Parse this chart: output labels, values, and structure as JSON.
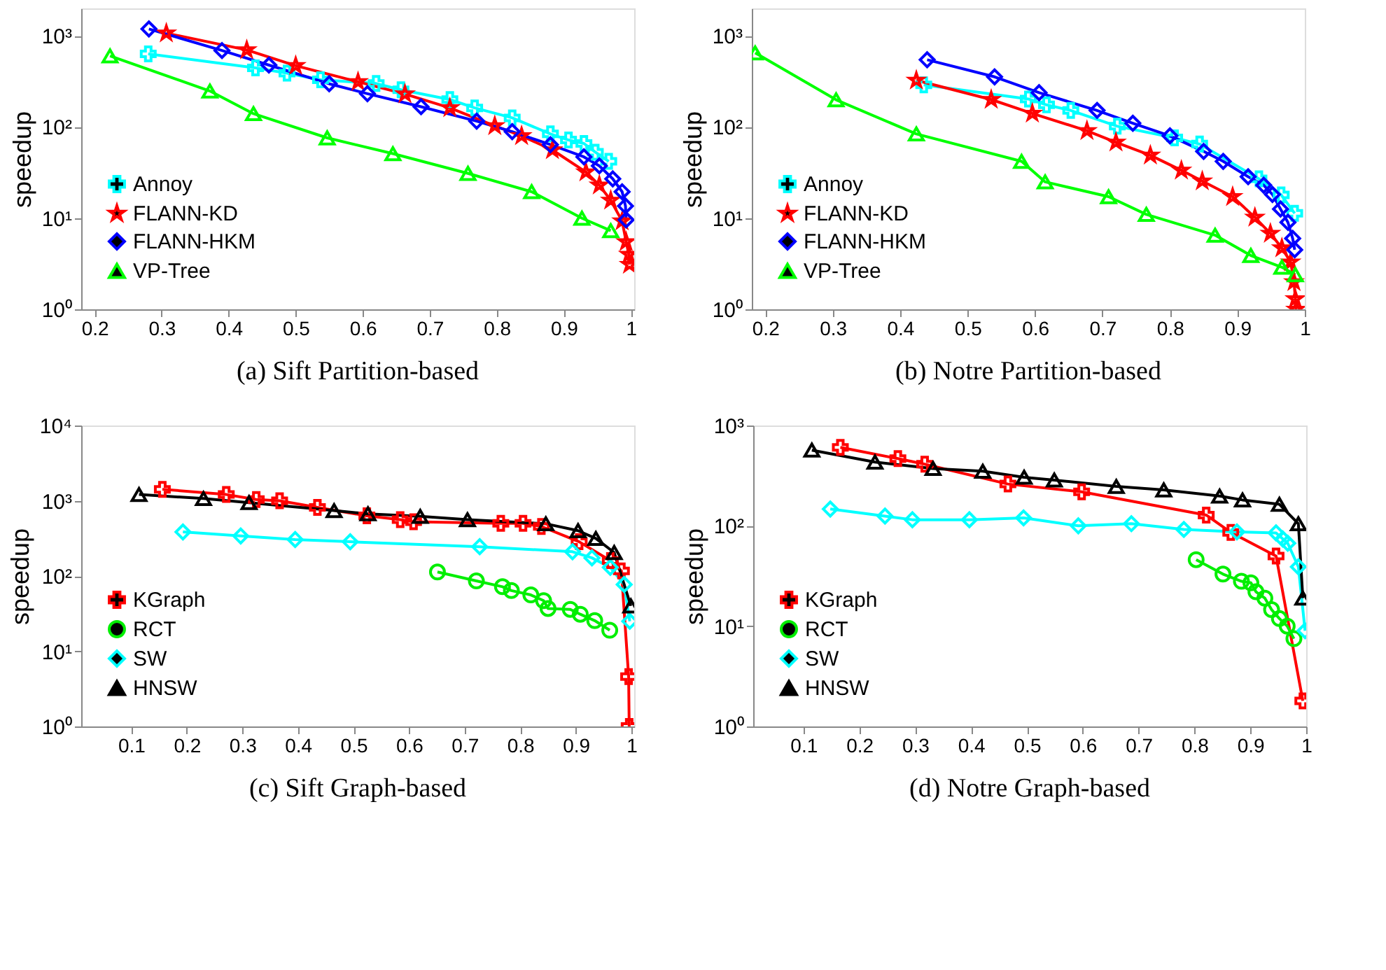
{
  "chart_data": [
    {
      "type": "line",
      "title": "(a) Sift Partition-based",
      "ylabel": "speedup",
      "log": "y",
      "grid": false,
      "legend": "bottom left",
      "xlim": [
        0.18,
        1.005
      ],
      "ylim": [
        1,
        2000
      ],
      "xticks": [
        0.2,
        0.3,
        0.4,
        0.5,
        0.6,
        0.7,
        0.8,
        0.9,
        1
      ],
      "yticks": [
        {
          "value": 1,
          "label": "10⁰"
        },
        {
          "value": 10,
          "label": "10¹"
        },
        {
          "value": 100,
          "label": "10²"
        },
        {
          "value": 1000,
          "label": "10³"
        }
      ],
      "series": [
        {
          "name": "Annoy",
          "color": "#00ffff",
          "marker": "cross",
          "x": [
            0.28,
            0.44,
            0.487,
            0.537,
            0.62,
            0.657,
            0.73,
            0.767,
            0.823,
            0.88,
            0.907,
            0.93,
            0.947,
            0.967
          ],
          "values": [
            635,
            445,
            390,
            330,
            300,
            256,
            200,
            162,
            126,
            84,
            72,
            66,
            53,
            42
          ]
        },
        {
          "name": "FLANN-KD",
          "color": "#ff0000",
          "marker": "star",
          "x": [
            0.307,
            0.427,
            0.5,
            0.593,
            0.663,
            0.73,
            0.797,
            0.837,
            0.883,
            0.933,
            0.953,
            0.97,
            0.987,
            0.993,
            0.997,
            0.998
          ],
          "values": [
            1070,
            700,
            470,
            313,
            230,
            162,
            103,
            80,
            56,
            32,
            23,
            15.7,
            9.3,
            5.5,
            4,
            3.1
          ]
        },
        {
          "name": "FLANN-HKM",
          "color": "#0000ff",
          "marker": "diamond",
          "x": [
            0.281,
            0.39,
            0.46,
            0.55,
            0.607,
            0.687,
            0.77,
            0.823,
            0.88,
            0.93,
            0.953,
            0.973,
            0.987,
            0.992,
            0.993
          ],
          "values": [
            1190,
            690,
            478,
            298,
            232,
            167,
            116,
            89,
            64,
            47,
            37.5,
            27,
            19.5,
            13.6,
            9.6
          ]
        },
        {
          "name": "VP-Tree",
          "color": "#00ff00",
          "marker": "triangle",
          "x": [
            0.223,
            0.372,
            0.437,
            0.547,
            0.645,
            0.757,
            0.852,
            0.927,
            0.97
          ],
          "values": [
            603,
            248,
            140,
            76,
            51,
            31,
            19.5,
            10,
            7.3
          ]
        }
      ]
    },
    {
      "type": "line",
      "title": "(b) Notre Partition-based",
      "ylabel": "speedup",
      "log": "y",
      "grid": false,
      "legend": "bottom left",
      "xlim": [
        0.18,
        1.0
      ],
      "ylim": [
        1,
        2000
      ],
      "xticks": [
        0.2,
        0.3,
        0.4,
        0.5,
        0.6,
        0.7,
        0.8,
        0.9,
        1
      ],
      "yticks": [
        {
          "value": 1,
          "label": "10⁰"
        },
        {
          "value": 10,
          "label": "10¹"
        },
        {
          "value": 100,
          "label": "10²"
        },
        {
          "value": 1000,
          "label": "10³"
        }
      ],
      "series": [
        {
          "name": "Annoy",
          "color": "#00ffff",
          "marker": "cross",
          "x": [
            0.435,
            0.59,
            0.617,
            0.653,
            0.722,
            0.807,
            0.844,
            0.932,
            0.965,
            0.985
          ],
          "values": [
            290,
            203,
            175,
            152,
            102,
            76,
            65,
            27,
            18,
            11.3
          ]
        },
        {
          "name": "FLANN-KD",
          "color": "#ff0000",
          "marker": "star",
          "x": [
            0.424,
            0.535,
            0.596,
            0.677,
            0.72,
            0.771,
            0.817,
            0.848,
            0.893,
            0.926,
            0.949,
            0.966,
            0.979,
            0.984,
            0.986,
            0.987
          ],
          "values": [
            325,
            200,
            141,
            91,
            68,
            49,
            33.5,
            25.5,
            17.2,
            10.2,
            6.8,
            4.7,
            3.3,
            2.0,
            1.3,
            1.0
          ]
        },
        {
          "name": "FLANN-HKM",
          "color": "#0000ff",
          "marker": "diamond",
          "x": [
            0.44,
            0.54,
            0.606,
            0.692,
            0.745,
            0.8,
            0.85,
            0.879,
            0.916,
            0.939,
            0.952,
            0.964,
            0.975,
            0.982,
            0.985
          ],
          "values": [
            547,
            355,
            238,
            152,
            110,
            80,
            54,
            42,
            28.5,
            23,
            18.2,
            12.6,
            9,
            6,
            4.5
          ]
        },
        {
          "name": "VP-Tree",
          "color": "#00ff00",
          "marker": "triangle",
          "x": [
            0.185,
            0.305,
            0.424,
            0.58,
            0.615,
            0.709,
            0.765,
            0.867,
            0.92,
            0.966,
            0.986
          ],
          "values": [
            650,
            199,
            84,
            42,
            25,
            17.2,
            11,
            6.5,
            3.9,
            2.9,
            2.4
          ]
        }
      ]
    },
    {
      "type": "line",
      "title": "(c) Sift Graph-based",
      "ylabel": "speedup",
      "log": "y",
      "grid": false,
      "legend": "bottom left",
      "xlim": [
        0.01,
        1.005
      ],
      "ylim": [
        1,
        10000
      ],
      "xticks": [
        0.1,
        0.2,
        0.3,
        0.4,
        0.5,
        0.6,
        0.7,
        0.8,
        0.9,
        1
      ],
      "yticks": [
        {
          "value": 1,
          "label": "10⁰"
        },
        {
          "value": 10,
          "label": "10¹"
        },
        {
          "value": 100,
          "label": "10²"
        },
        {
          "value": 1000,
          "label": "10³"
        },
        {
          "value": 10000,
          "label": "10⁴"
        }
      ],
      "series": [
        {
          "name": "KGraph",
          "color": "#ff0000",
          "marker": "cross",
          "x": [
            0.156,
            0.271,
            0.325,
            0.367,
            0.435,
            0.524,
            0.584,
            0.608,
            0.765,
            0.805,
            0.838,
            0.906,
            0.962,
            0.982,
            0.995,
            0.996
          ],
          "values": [
            1420,
            1210,
            1040,
            1000,
            815,
            630,
            560,
            525,
            500,
            500,
            455,
            285,
            160,
            117,
            4.6,
            1
          ]
        },
        {
          "name": "RCT",
          "color": "#00ee00",
          "marker": "circle",
          "x": [
            0.651,
            0.721,
            0.768,
            0.784,
            0.819,
            0.842,
            0.85,
            0.89,
            0.908,
            0.934,
            0.961
          ],
          "values": [
            113,
            86,
            72,
            64,
            56,
            47,
            37,
            36,
            31,
            25.5,
            19
          ]
        },
        {
          "name": "SW",
          "color": "#00ffff",
          "marker": "diamond",
          "x": [
            0.193,
            0.297,
            0.395,
            0.494,
            0.727,
            0.894,
            0.929,
            0.962,
            0.987,
            0.997
          ],
          "values": [
            385,
            340,
            305,
            285,
            245,
            210,
            174,
            130,
            77,
            25
          ]
        },
        {
          "name": "HNSW",
          "color": "#000000",
          "marker": "triangle",
          "x": [
            0.114,
            0.23,
            0.312,
            0.465,
            0.526,
            0.62,
            0.705,
            0.846,
            0.904,
            0.936,
            0.969,
            0.999
          ],
          "values": [
            1210,
            1070,
            945,
            740,
            670,
            620,
            560,
            495,
            400,
            315,
            205,
            40
          ]
        }
      ]
    },
    {
      "type": "line",
      "title": "(d) Notre Graph-based",
      "ylabel": "speedup",
      "log": "y",
      "grid": false,
      "legend": "bottom left",
      "xlim": [
        0.01,
        1.0
      ],
      "ylim": [
        1,
        1000
      ],
      "xticks": [
        0.1,
        0.2,
        0.3,
        0.4,
        0.5,
        0.6,
        0.7,
        0.8,
        0.9,
        1
      ],
      "yticks": [
        {
          "value": 1,
          "label": "10⁰"
        },
        {
          "value": 10,
          "label": "10¹"
        },
        {
          "value": 100,
          "label": "10²"
        },
        {
          "value": 1000,
          "label": "10³"
        }
      ],
      "series": [
        {
          "name": "KGraph",
          "color": "#ff0000",
          "marker": "cross",
          "x": [
            0.166,
            0.269,
            0.317,
            0.466,
            0.598,
            0.821,
            0.865,
            0.946,
            0.994
          ],
          "values": [
            605,
            468,
            412,
            261,
            218,
            128,
            86,
            50,
            1.8
          ]
        },
        {
          "name": "RCT",
          "color": "#00ee00",
          "marker": "circle",
          "x": [
            0.803,
            0.851,
            0.884,
            0.901,
            0.91,
            0.926,
            0.938,
            0.952,
            0.966,
            0.978
          ],
          "values": [
            46,
            33,
            28,
            27,
            22,
            19,
            14.6,
            11.9,
            10,
            7.5
          ]
        },
        {
          "name": "SW",
          "color": "#00ffff",
          "marker": "diamond",
          "x": [
            0.148,
            0.246,
            0.295,
            0.397,
            0.494,
            0.592,
            0.687,
            0.781,
            0.876,
            0.946,
            0.958,
            0.967,
            0.986,
            0.998
          ],
          "values": [
            147,
            125,
            115,
            115,
            120,
            100,
            105,
            92,
            87,
            85,
            74,
            67,
            39,
            9
          ]
        },
        {
          "name": "HNSW",
          "color": "#000000",
          "marker": "triangle",
          "x": [
            0.115,
            0.228,
            0.332,
            0.421,
            0.495,
            0.549,
            0.66,
            0.745,
            0.845,
            0.886,
            0.952,
            0.986,
            0.994
          ],
          "values": [
            568,
            432,
            373,
            350,
            305,
            286,
            247,
            228,
            198,
            181,
            164,
            105,
            19
          ]
        }
      ]
    }
  ]
}
